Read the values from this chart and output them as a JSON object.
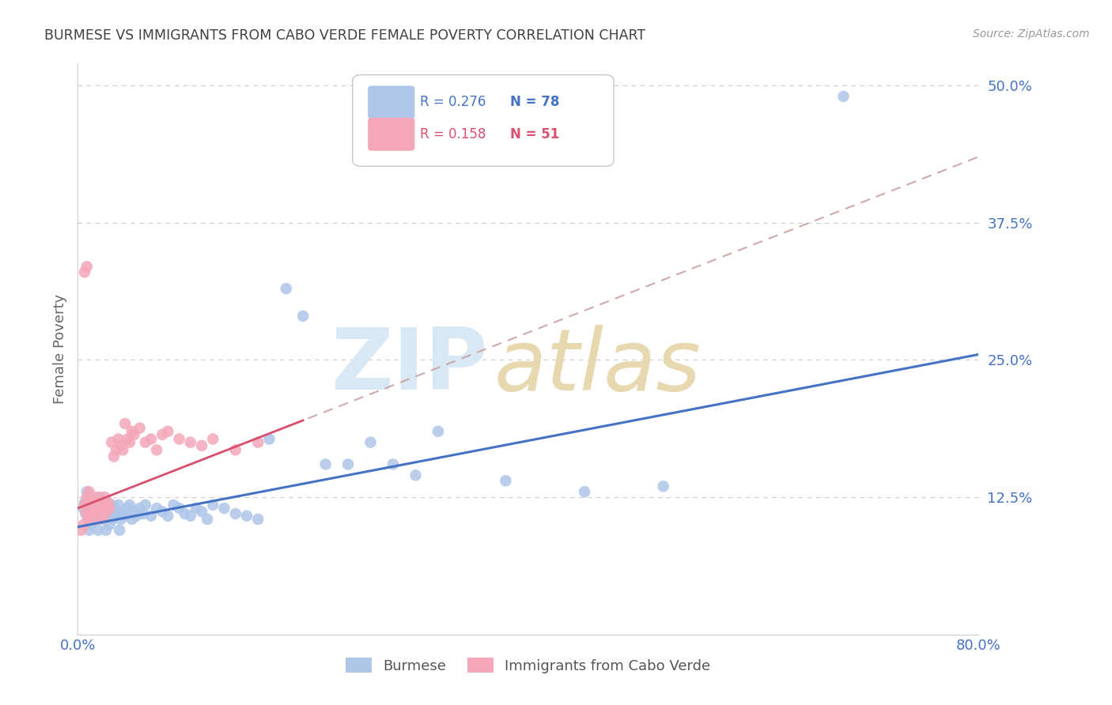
{
  "title": "BURMESE VS IMMIGRANTS FROM CABO VERDE FEMALE POVERTY CORRELATION CHART",
  "source": "Source: ZipAtlas.com",
  "ylabel": "Female Poverty",
  "xlim": [
    0.0,
    0.8
  ],
  "ylim": [
    0.0,
    0.52
  ],
  "y_ticks": [
    0.0,
    0.125,
    0.25,
    0.375,
    0.5
  ],
  "y_tick_labels": [
    "",
    "12.5%",
    "25.0%",
    "37.5%",
    "50.0%"
  ],
  "x_ticks": [
    0.0,
    0.8
  ],
  "x_tick_labels": [
    "0.0%",
    "80.0%"
  ],
  "legend_R1": "0.276",
  "legend_N1": "78",
  "legend_R2": "0.158",
  "legend_N2": "51",
  "series1_label": "Burmese",
  "series2_label": "Immigrants from Cabo Verde",
  "series1_color": "#aec6e8",
  "series2_color": "#f4a7b9",
  "trendline1_color": "#4472c4",
  "trendline2_color": "#d94f6e",
  "trendline_dashed_color": "#c9a0a0",
  "background_color": "#ffffff",
  "title_color": "#404040",
  "tick_color": "#4472c4",
  "ylabel_color": "#666666",
  "source_color": "#999999",
  "watermark_zip_color": "#d8e8f5",
  "watermark_atlas_color": "#e8d8b0",
  "burmese_x": [
    0.005,
    0.006,
    0.007,
    0.008,
    0.01,
    0.01,
    0.01,
    0.012,
    0.013,
    0.014,
    0.015,
    0.015,
    0.016,
    0.016,
    0.017,
    0.018,
    0.019,
    0.02,
    0.02,
    0.021,
    0.022,
    0.023,
    0.024,
    0.025,
    0.025,
    0.026,
    0.027,
    0.028,
    0.029,
    0.03,
    0.03,
    0.031,
    0.032,
    0.033,
    0.034,
    0.035,
    0.036,
    0.037,
    0.038,
    0.04,
    0.042,
    0.044,
    0.046,
    0.048,
    0.05,
    0.052,
    0.055,
    0.058,
    0.06,
    0.065,
    0.07,
    0.075,
    0.08,
    0.085,
    0.09,
    0.095,
    0.1,
    0.105,
    0.11,
    0.115,
    0.12,
    0.13,
    0.14,
    0.15,
    0.16,
    0.17,
    0.185,
    0.2,
    0.22,
    0.24,
    0.26,
    0.28,
    0.3,
    0.32,
    0.38,
    0.45,
    0.52,
    0.68
  ],
  "burmese_y": [
    0.115,
    0.12,
    0.11,
    0.13,
    0.095,
    0.105,
    0.125,
    0.1,
    0.115,
    0.108,
    0.112,
    0.118,
    0.105,
    0.122,
    0.11,
    0.095,
    0.115,
    0.108,
    0.125,
    0.118,
    0.112,
    0.105,
    0.12,
    0.095,
    0.11,
    0.108,
    0.115,
    0.1,
    0.112,
    0.108,
    0.118,
    0.105,
    0.11,
    0.115,
    0.108,
    0.112,
    0.118,
    0.095,
    0.105,
    0.11,
    0.108,
    0.115,
    0.118,
    0.105,
    0.112,
    0.108,
    0.115,
    0.11,
    0.118,
    0.108,
    0.115,
    0.112,
    0.108,
    0.118,
    0.115,
    0.11,
    0.108,
    0.115,
    0.112,
    0.105,
    0.118,
    0.115,
    0.11,
    0.108,
    0.105,
    0.178,
    0.315,
    0.29,
    0.155,
    0.155,
    0.175,
    0.155,
    0.145,
    0.185,
    0.14,
    0.13,
    0.135,
    0.49
  ],
  "caboverde_x": [
    0.003,
    0.005,
    0.006,
    0.007,
    0.008,
    0.009,
    0.01,
    0.01,
    0.011,
    0.012,
    0.013,
    0.014,
    0.015,
    0.016,
    0.017,
    0.018,
    0.019,
    0.02,
    0.021,
    0.022,
    0.023,
    0.024,
    0.025,
    0.026,
    0.027,
    0.028,
    0.03,
    0.032,
    0.034,
    0.036,
    0.038,
    0.04,
    0.042,
    0.044,
    0.046,
    0.048,
    0.05,
    0.055,
    0.06,
    0.065,
    0.07,
    0.075,
    0.08,
    0.09,
    0.1,
    0.11,
    0.12,
    0.14,
    0.16,
    0.006,
    0.008
  ],
  "caboverde_y": [
    0.095,
    0.1,
    0.118,
    0.112,
    0.125,
    0.105,
    0.108,
    0.13,
    0.115,
    0.122,
    0.118,
    0.108,
    0.12,
    0.112,
    0.125,
    0.118,
    0.105,
    0.115,
    0.122,
    0.118,
    0.108,
    0.125,
    0.112,
    0.118,
    0.12,
    0.115,
    0.175,
    0.162,
    0.168,
    0.178,
    0.172,
    0.168,
    0.192,
    0.178,
    0.175,
    0.185,
    0.182,
    0.188,
    0.175,
    0.178,
    0.168,
    0.182,
    0.185,
    0.178,
    0.175,
    0.172,
    0.178,
    0.168,
    0.175,
    0.33,
    0.335
  ],
  "trendline1_x0": 0.0,
  "trendline1_x1": 0.8,
  "trendline1_y0": 0.098,
  "trendline1_y1": 0.255,
  "trendline2_x0": 0.0,
  "trendline2_x1": 0.2,
  "trendline2_y0": 0.115,
  "trendline2_y1": 0.195,
  "trendline2_dash_x0": 0.0,
  "trendline2_dash_x1": 0.8,
  "trendline2_dash_y0": 0.115,
  "trendline2_dash_y1": 0.435
}
